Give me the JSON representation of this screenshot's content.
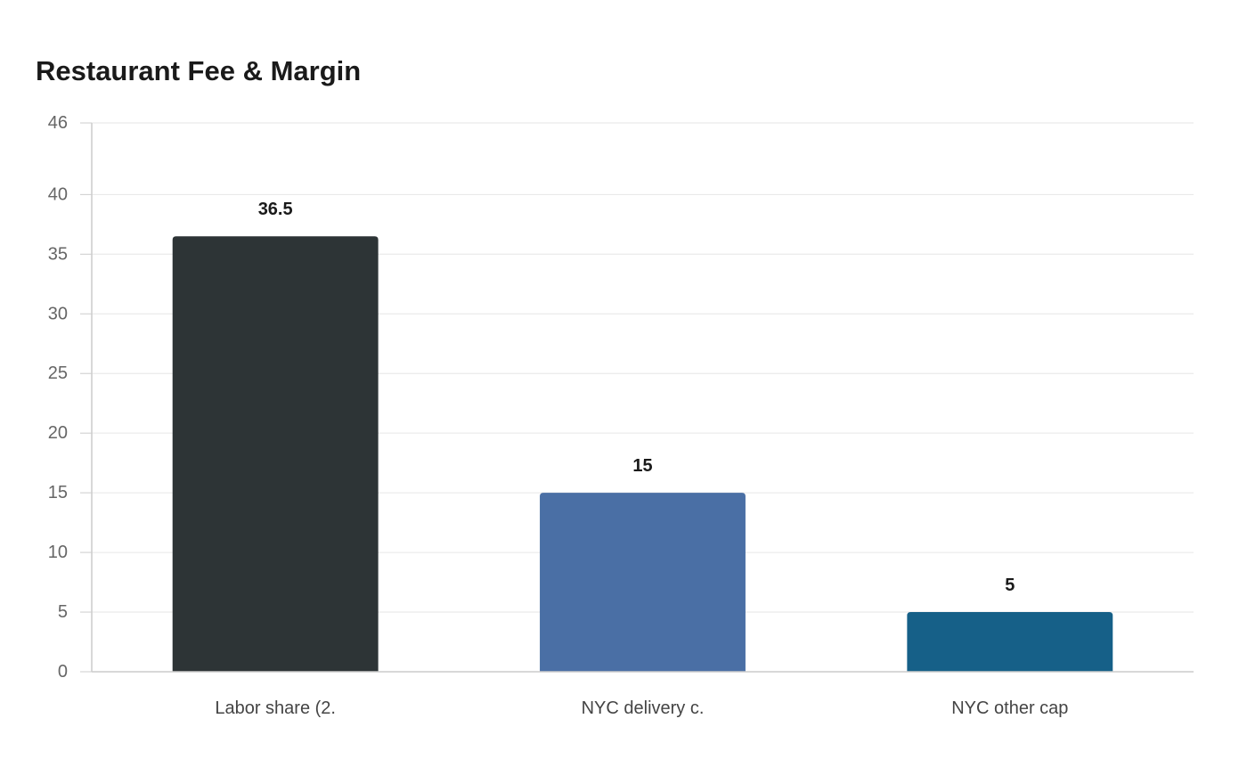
{
  "chart_data": {
    "type": "bar",
    "title": "Restaurant Fee & Margin",
    "xlabel": "",
    "ylabel": "",
    "categories": [
      "Labor share (2.",
      "NYC delivery c.",
      "NYC other cap"
    ],
    "values": [
      36.5,
      15,
      5
    ],
    "colors": [
      "#2d3436",
      "#4a6fa5",
      "#166088"
    ],
    "ylim": [
      0,
      46
    ],
    "yticks": [
      0,
      5,
      10,
      15,
      20,
      25,
      30,
      35,
      40,
      46
    ],
    "grid": true,
    "legend": "none",
    "data_labels": [
      "36.5",
      "15",
      "5"
    ]
  }
}
